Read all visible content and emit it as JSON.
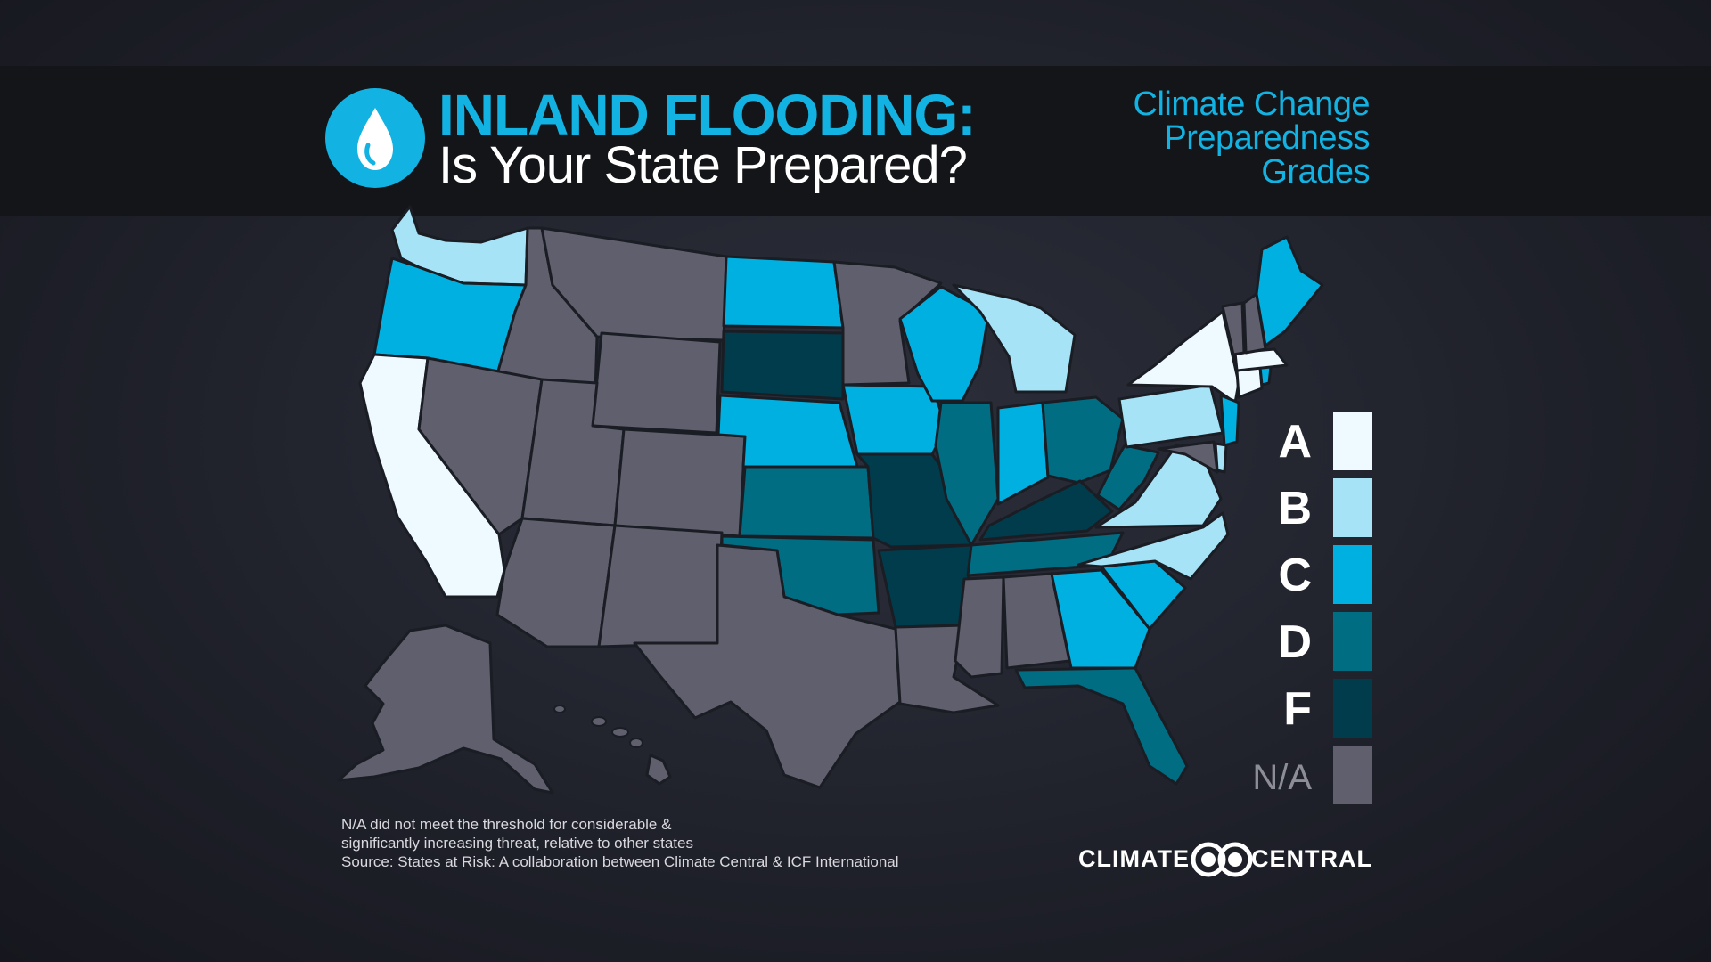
{
  "header": {
    "title": "INLAND FLOODING:",
    "subtitle": "Is Your State Prepared?",
    "grades_title": [
      "Climate Change",
      "Preparedness",
      "Grades"
    ]
  },
  "colors": {
    "A": "#eefaff",
    "B": "#a6e3f6",
    "C": "#00b0e0",
    "D": "#006d83",
    "F": "#003c4c",
    "N/A": "#5f5f6d",
    "accent": "#12b3e3"
  },
  "legend": [
    {
      "grade": "A",
      "label": "A"
    },
    {
      "grade": "B",
      "label": "B"
    },
    {
      "grade": "C",
      "label": "C"
    },
    {
      "grade": "D",
      "label": "D"
    },
    {
      "grade": "F",
      "label": "F"
    },
    {
      "grade": "N/A",
      "label": "N/A"
    }
  ],
  "state_grades": {
    "WA": "B",
    "OR": "C",
    "CA": "A",
    "ID": "N/A",
    "NV": "N/A",
    "MT": "N/A",
    "WY": "N/A",
    "UT": "N/A",
    "CO": "N/A",
    "AZ": "N/A",
    "NM": "N/A",
    "ND": "C",
    "SD": "F",
    "NE": "C",
    "KS": "D",
    "OK": "D",
    "TX": "N/A",
    "MN": "N/A",
    "IA": "C",
    "MO": "F",
    "AR": "F",
    "LA": "N/A",
    "WI": "C",
    "IL": "D",
    "MI": "B",
    "IN": "C",
    "OH": "D",
    "KY": "F",
    "TN": "D",
    "MS": "N/A",
    "AL": "N/A",
    "GA": "C",
    "FL": "D",
    "SC": "C",
    "NC": "B",
    "VA": "B",
    "WV": "D",
    "PA": "B",
    "NY": "A",
    "NJ": "C",
    "DE": "B",
    "MD": "N/A",
    "CT": "A",
    "RI": "C",
    "MA": "A",
    "VT": "N/A",
    "NH": "N/A",
    "ME": "C",
    "AK": "N/A",
    "HI": "N/A"
  },
  "footnote": [
    "N/A did not meet the threshold for considerable &",
    "significantly increasing threat, relative to other states",
    "Source: States at Risk: A collaboration between Climate Central & ICF International"
  ],
  "brand": {
    "left": "CLIMATE",
    "right": "CENTRAL"
  }
}
